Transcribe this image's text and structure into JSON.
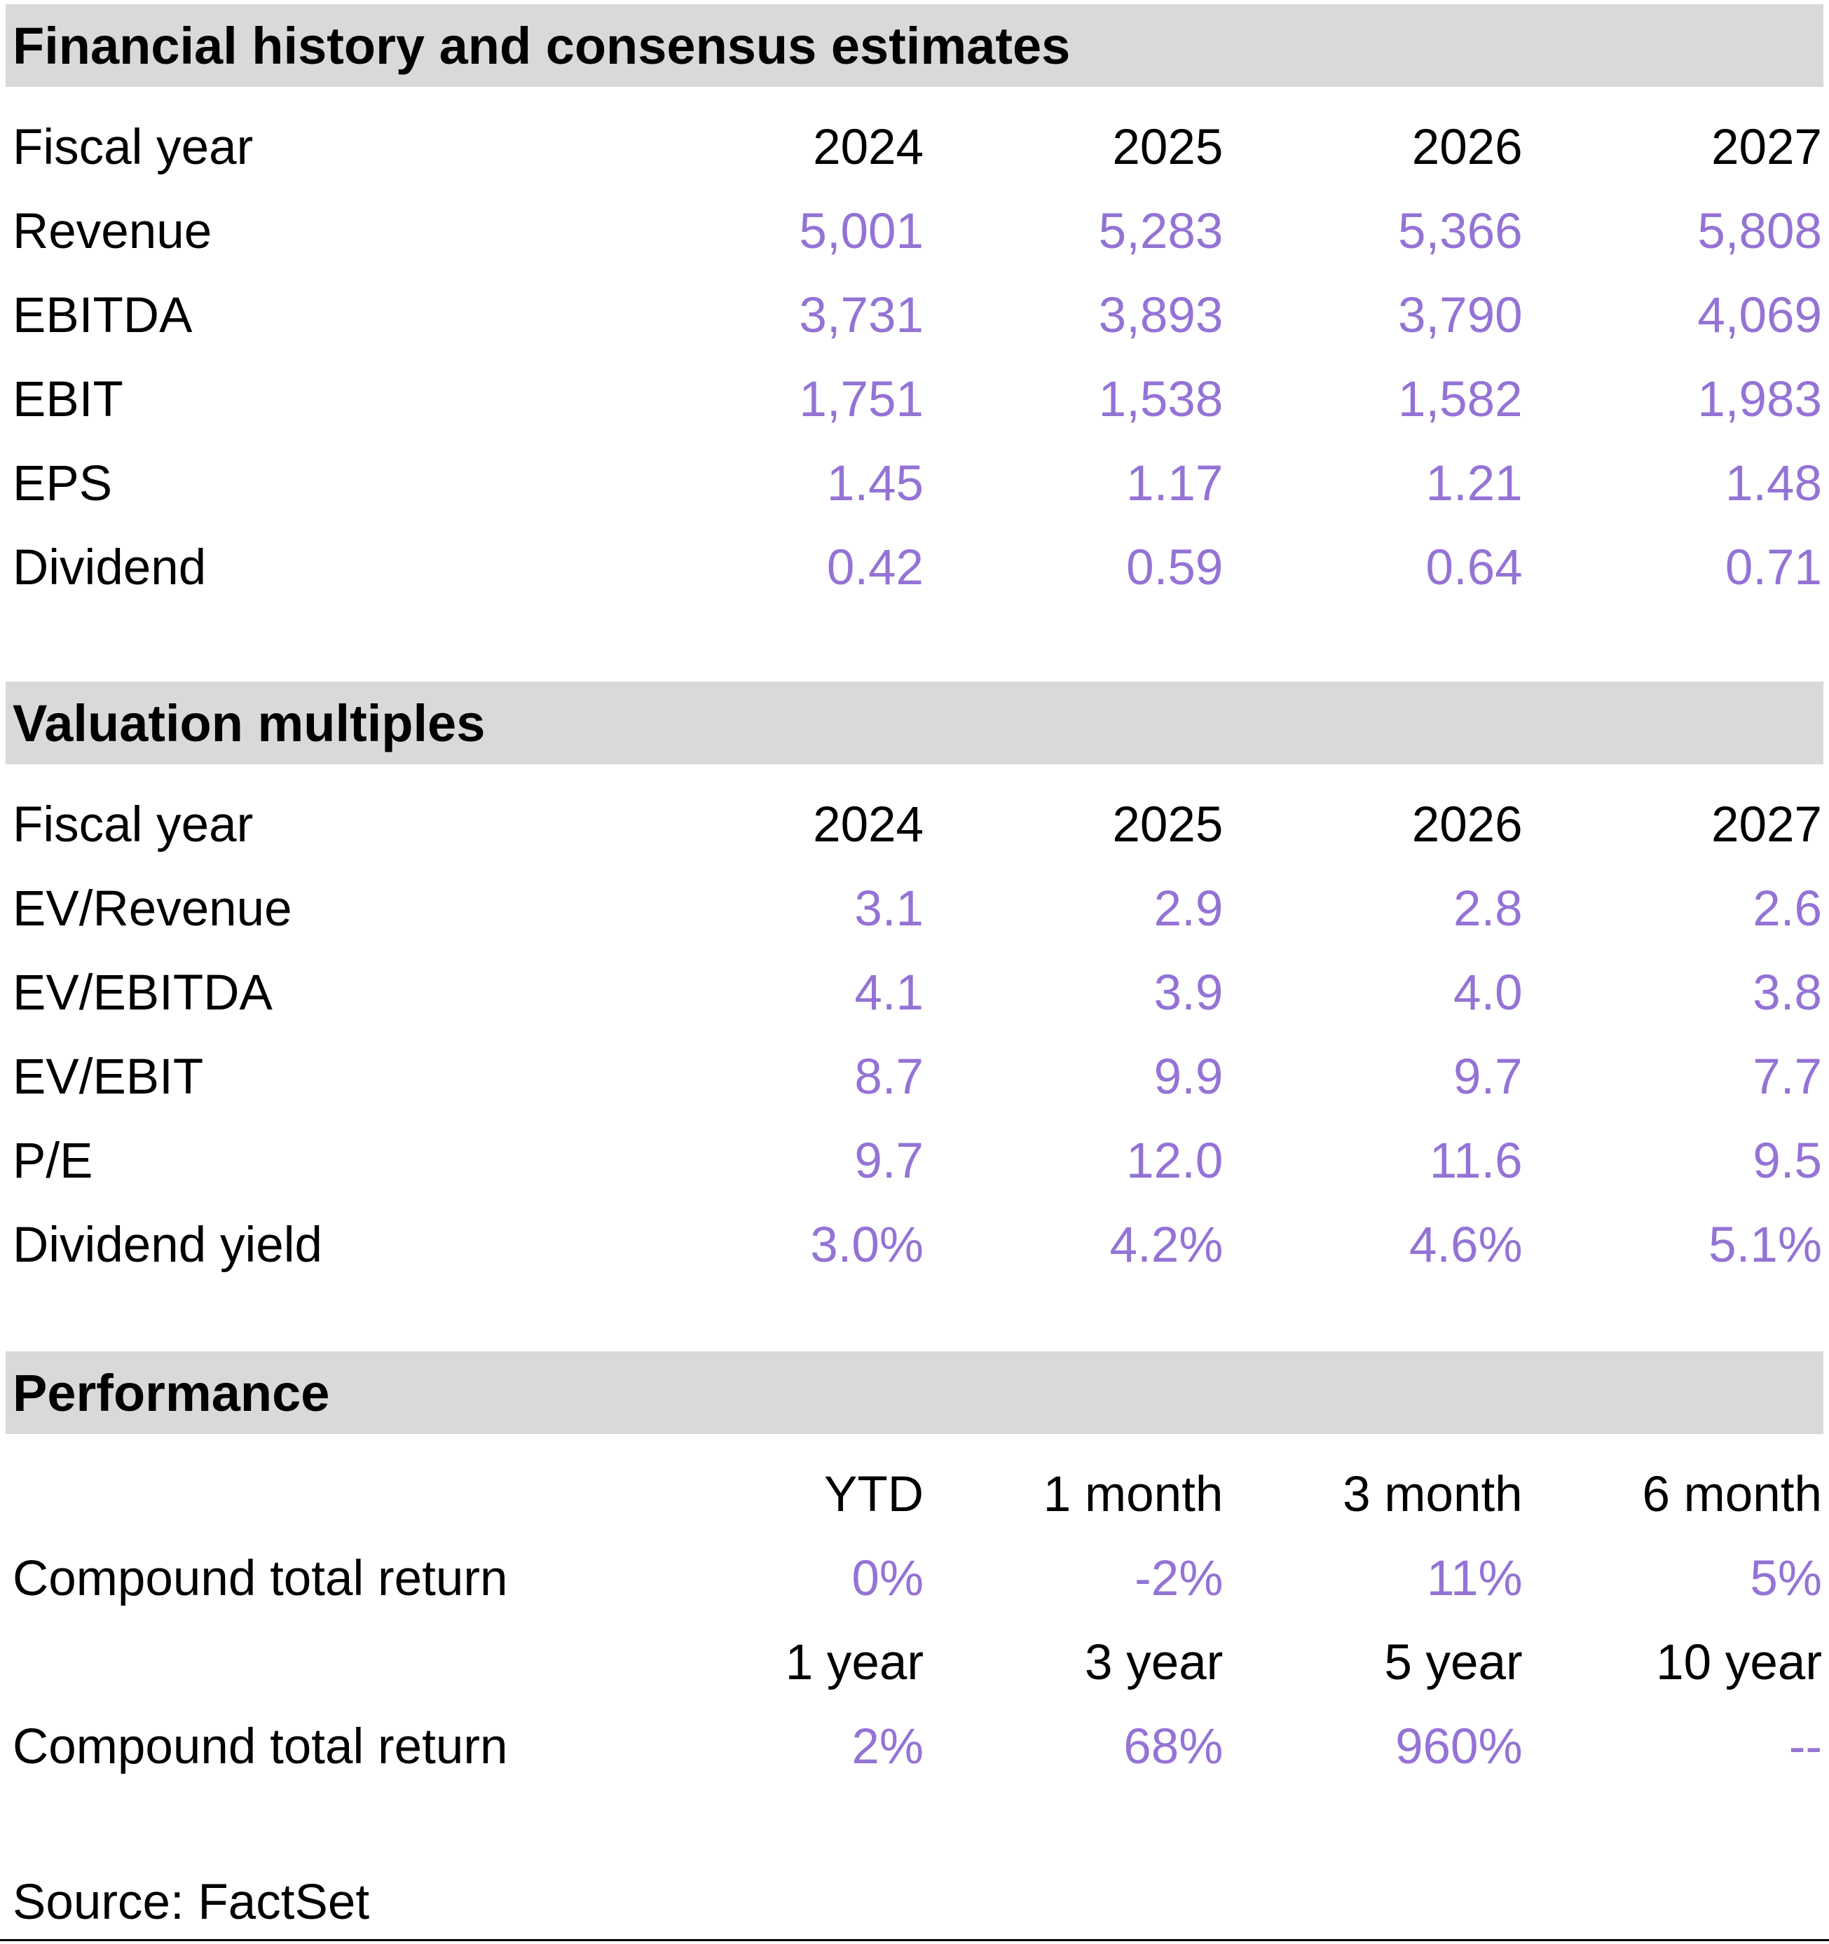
{
  "colors": {
    "accent_purple": "#9473D5",
    "section_bar_bg": "#D9D9D9",
    "text": "#000000"
  },
  "sections": [
    {
      "title": "Financial history and consensus estimates",
      "header_label": "Fiscal year",
      "columns": [
        "2024",
        "2025",
        "2026",
        "2027"
      ],
      "rows": [
        {
          "label": "Revenue",
          "values": [
            "5,001",
            "5,283",
            "5,366",
            "5,808"
          ]
        },
        {
          "label": "EBITDA",
          "values": [
            "3,731",
            "3,893",
            "3,790",
            "4,069"
          ]
        },
        {
          "label": "EBIT",
          "values": [
            "1,751",
            "1,538",
            "1,582",
            "1,983"
          ]
        },
        {
          "label": "EPS",
          "values": [
            "1.45",
            "1.17",
            "1.21",
            "1.48"
          ]
        },
        {
          "label": "Dividend",
          "values": [
            "0.42",
            "0.59",
            "0.64",
            "0.71"
          ]
        }
      ]
    },
    {
      "title": "Valuation multiples",
      "header_label": "Fiscal year",
      "columns": [
        "2024",
        "2025",
        "2026",
        "2027"
      ],
      "rows": [
        {
          "label": "EV/Revenue",
          "values": [
            "3.1",
            "2.9",
            "2.8",
            "2.6"
          ]
        },
        {
          "label": "EV/EBITDA",
          "values": [
            "4.1",
            "3.9",
            "4.0",
            "3.8"
          ]
        },
        {
          "label": "EV/EBIT",
          "values": [
            "8.7",
            "9.9",
            "9.7",
            "7.7"
          ]
        },
        {
          "label": "P/E",
          "values": [
            "9.7",
            "12.0",
            "11.6",
            "9.5"
          ]
        },
        {
          "label": "Dividend yield",
          "values": [
            "3.0%",
            "4.2%",
            "4.6%",
            "5.1%"
          ]
        }
      ]
    },
    {
      "title": "Performance",
      "groups": [
        {
          "columns": [
            "YTD",
            "1 month",
            "3 month",
            "6 month"
          ],
          "rows": [
            {
              "label": "Compound total return",
              "values": [
                "0%",
                "-2%",
                "11%",
                "5%"
              ]
            }
          ]
        },
        {
          "columns": [
            "1 year",
            "3 year",
            "5 year",
            "10 year"
          ],
          "rows": [
            {
              "label": "Compound total return",
              "values": [
                "2%",
                "68%",
                "960%",
                "--"
              ]
            }
          ]
        }
      ]
    }
  ],
  "footer": {
    "source": "Source: FactSet"
  }
}
